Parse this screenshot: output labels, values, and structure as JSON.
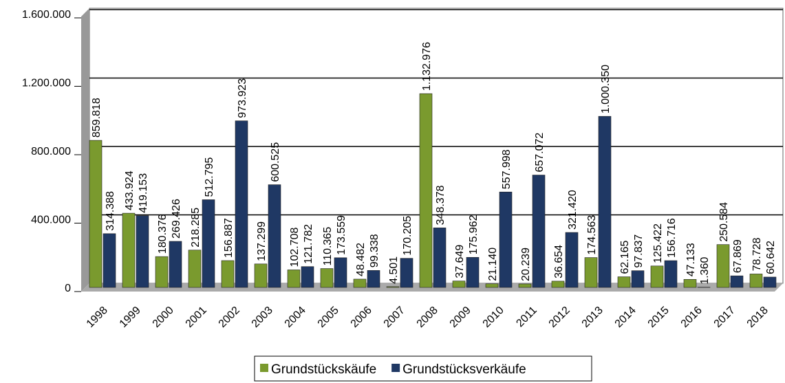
{
  "chart_data": {
    "type": "bar",
    "categories": [
      "1998",
      "1999",
      "2000",
      "2001",
      "2002",
      "2003",
      "2004",
      "2005",
      "2006",
      "2007",
      "2008",
      "2009",
      "2010",
      "2011",
      "2012",
      "2013",
      "2014",
      "2015",
      "2016",
      "2017",
      "2018"
    ],
    "series": [
      {
        "name": "Grundstückskäufe",
        "color": "#7a9a2e",
        "values": [
          859818,
          433924,
          180376,
          218285,
          156887,
          137299,
          102708,
          110365,
          48482,
          4501,
          1132976,
          37649,
          21140,
          20239,
          36654,
          174563,
          62165,
          125422,
          47133,
          250584,
          78728
        ],
        "value_labels": [
          "859.818",
          "433.924",
          "180.376",
          "218.285",
          "156.887",
          "137.299",
          "102.708",
          "110.365",
          "48.482",
          "4.501",
          "1.132.976",
          "37.649",
          "21.140",
          "20.239",
          "36.654",
          "174.563",
          "62.165",
          "125.422",
          "47.133",
          "250.584",
          "78.728"
        ]
      },
      {
        "name": "Grundstücksverkäufe",
        "color": "#1f3864",
        "values": [
          314388,
          419153,
          269426,
          512795,
          973923,
          600525,
          121782,
          173559,
          99338,
          170205,
          348378,
          175962,
          557998,
          657072,
          321420,
          1000350,
          97837,
          156716,
          1360,
          67869,
          60642
        ],
        "value_labels": [
          "314.388",
          "419.153",
          "269.426",
          "512.795",
          "973.923",
          "600.525",
          "121.782",
          "173.559",
          "99.338",
          "170.205",
          "348.378",
          "175.962",
          "557.998",
          "657.072",
          "321.420",
          "1.000.350",
          "97.837",
          "156.716",
          "1.360",
          "67.869",
          "60.642"
        ]
      }
    ],
    "ylim": [
      0,
      1600000
    ],
    "yticks": [
      0,
      {
        "value": 400000,
        "label": "400.000"
      },
      {
        "value": 800000,
        "label": "800.000"
      },
      {
        "value": 1200000,
        "label": "1.200.000"
      },
      {
        "value": 1600000,
        "label": "1.600.000"
      }
    ],
    "grid": true
  }
}
